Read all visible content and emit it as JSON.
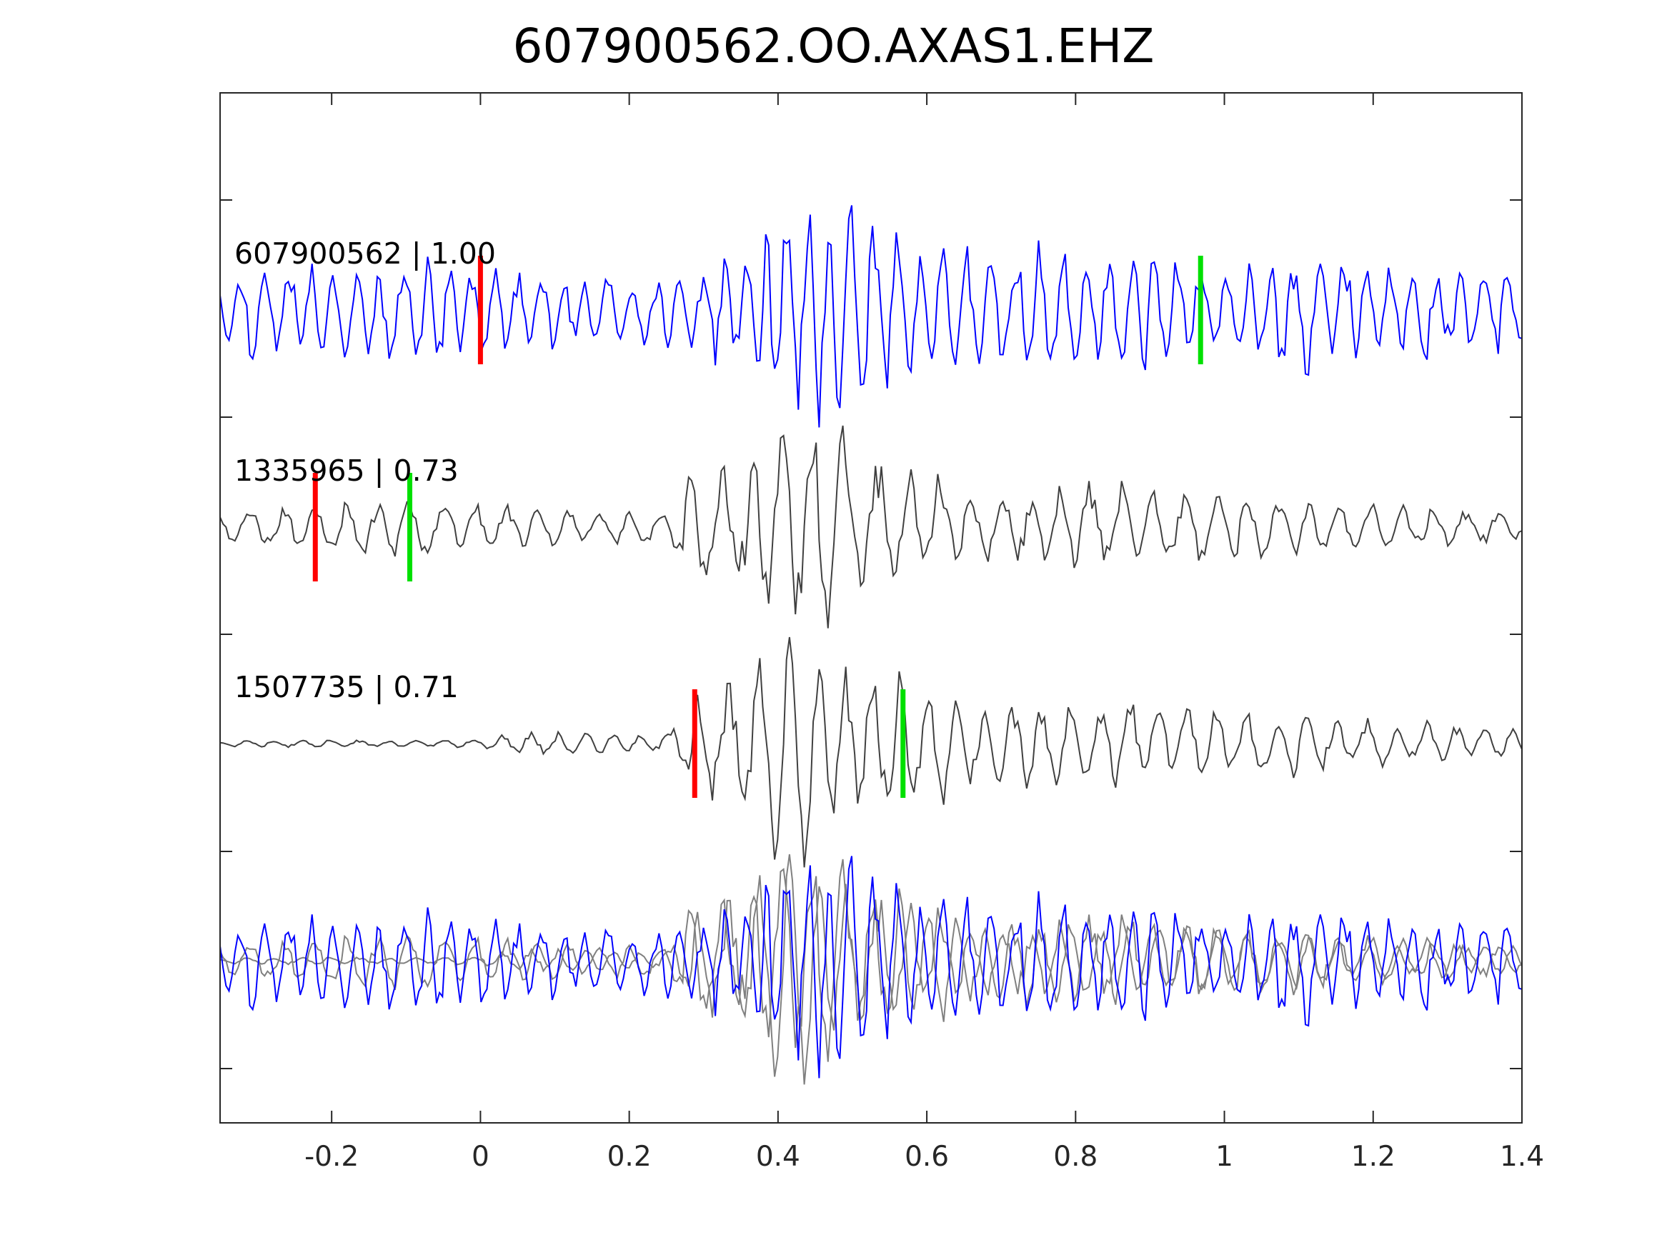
{
  "chart_data": {
    "type": "line",
    "title": "607900562.OO.AXAS1.EHZ",
    "xlabel": "",
    "ylabel": "",
    "xlim": [
      -0.35,
      1.4
    ],
    "x_ticks": [
      "-0.2",
      "0",
      "0.2",
      "0.4",
      "0.6",
      "0.8",
      "1",
      "1.2",
      "1.4"
    ],
    "x_tick_values": [
      -0.2,
      0,
      0.2,
      0.4,
      0.6,
      0.8,
      1,
      1.2,
      1.4
    ],
    "y_tick_labels_shown": false,
    "grid": false,
    "colors": {
      "main": "#0000ff",
      "template": "#404040",
      "overlay_template": "#808080",
      "p_pick": "#ff0000",
      "s_pick": "#00e000"
    },
    "series": [
      {
        "label": "607900562 | 1.00",
        "color": "#0000ff",
        "p_pick_time": 0.0,
        "s_pick_time": 0.968,
        "envelope": [
          [
            -0.35,
            0.35
          ],
          [
            -0.1,
            0.45
          ],
          [
            0.1,
            0.3
          ],
          [
            0.2,
            0.3
          ],
          [
            0.3,
            0.35
          ],
          [
            0.4,
            0.75
          ],
          [
            0.45,
            1.0
          ],
          [
            0.6,
            0.55
          ],
          [
            0.8,
            0.5
          ],
          [
            1.0,
            0.45
          ],
          [
            1.1,
            0.5
          ],
          [
            1.2,
            0.45
          ],
          [
            1.4,
            0.35
          ]
        ]
      },
      {
        "label": "1335965 | 0.73",
        "color": "#404040",
        "p_pick_time": -0.222,
        "s_pick_time": -0.095,
        "envelope": [
          [
            -0.35,
            0.12
          ],
          [
            -0.2,
            0.2
          ],
          [
            -0.1,
            0.25
          ],
          [
            0.0,
            0.2
          ],
          [
            0.1,
            0.15
          ],
          [
            0.25,
            0.15
          ],
          [
            0.28,
            0.5
          ],
          [
            0.35,
            0.6
          ],
          [
            0.45,
            1.0
          ],
          [
            0.55,
            0.45
          ],
          [
            0.7,
            0.3
          ],
          [
            0.85,
            0.35
          ],
          [
            1.0,
            0.3
          ],
          [
            1.2,
            0.2
          ],
          [
            1.4,
            0.12
          ]
        ]
      },
      {
        "label": "1507735 | 0.71",
        "color": "#404040",
        "p_pick_time": 0.288,
        "s_pick_time": 0.568,
        "envelope": [
          [
            -0.35,
            0.03
          ],
          [
            0.0,
            0.03
          ],
          [
            0.05,
            0.1
          ],
          [
            0.25,
            0.08
          ],
          [
            0.3,
            0.5
          ],
          [
            0.35,
            0.65
          ],
          [
            0.42,
            1.0
          ],
          [
            0.5,
            0.6
          ],
          [
            0.6,
            0.5
          ],
          [
            0.7,
            0.35
          ],
          [
            0.8,
            0.35
          ],
          [
            1.0,
            0.3
          ],
          [
            1.2,
            0.2
          ],
          [
            1.4,
            0.12
          ]
        ]
      }
    ],
    "overlay_panel": "all traces superimposed"
  }
}
